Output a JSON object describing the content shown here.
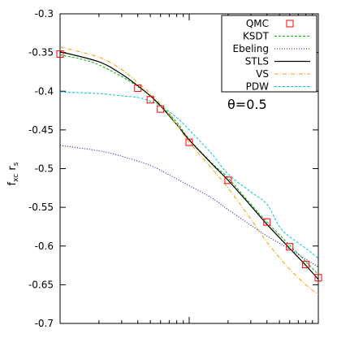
{
  "chart_data": {
    "type": "line",
    "ylabel_main": "f",
    "ylabel_sub": "xc",
    "ylabel_tail": " r",
    "ylabel_sub2": "s",
    "xscale": "log",
    "xlim": [
      0.1,
      10
    ],
    "ylim": [
      -0.7,
      -0.3
    ],
    "yticks": [
      -0.3,
      -0.35,
      -0.4,
      -0.45,
      -0.5,
      -0.55,
      -0.6,
      -0.65,
      -0.7
    ],
    "ytick_labels": [
      "-0.3",
      "-0.35",
      "-0.4",
      "-0.45",
      "-0.5",
      "-0.55",
      "-0.6",
      "-0.65",
      "-0.7"
    ],
    "xticks": [
      0.1,
      1,
      10
    ],
    "annotation": "θ=0.5",
    "legend_position": "top-right",
    "series": [
      {
        "name": "QMC",
        "style": "markers",
        "color": "#ff0000",
        "points": [
          [
            0.1,
            -0.352
          ],
          [
            0.4,
            -0.396
          ],
          [
            0.5,
            -0.411
          ],
          [
            0.6,
            -0.423
          ],
          [
            1.0,
            -0.466
          ],
          [
            2.0,
            -0.515
          ],
          [
            4.0,
            -0.569
          ],
          [
            6.0,
            -0.601
          ],
          [
            8.0,
            -0.624
          ],
          [
            10.0,
            -0.641
          ]
        ]
      },
      {
        "name": "KSDT",
        "style": "dashed",
        "color": "#00b000",
        "points": [
          [
            0.1,
            -0.353
          ],
          [
            0.15,
            -0.359
          ],
          [
            0.2,
            -0.366
          ],
          [
            0.3,
            -0.381
          ],
          [
            0.4,
            -0.394
          ],
          [
            0.5,
            -0.406
          ],
          [
            0.6,
            -0.418
          ],
          [
            0.8,
            -0.44
          ],
          [
            1.0,
            -0.462
          ],
          [
            1.5,
            -0.493
          ],
          [
            2.0,
            -0.512
          ],
          [
            3.0,
            -0.546
          ],
          [
            4.0,
            -0.569
          ],
          [
            6.0,
            -0.599
          ],
          [
            8.0,
            -0.62
          ],
          [
            10.0,
            -0.637
          ]
        ]
      },
      {
        "name": "Ebeling",
        "style": "dotted",
        "color": "#0000d0",
        "points": [
          [
            0.1,
            -0.47
          ],
          [
            0.2,
            -0.477
          ],
          [
            0.3,
            -0.484
          ],
          [
            0.5,
            -0.496
          ],
          [
            0.7,
            -0.508
          ],
          [
            1.0,
            -0.522
          ],
          [
            1.5,
            -0.538
          ],
          [
            2.0,
            -0.553
          ],
          [
            3.0,
            -0.573
          ],
          [
            4.0,
            -0.587
          ],
          [
            6.0,
            -0.604
          ],
          [
            8.0,
            -0.617
          ],
          [
            10.0,
            -0.627
          ]
        ]
      },
      {
        "name": "STLS",
        "style": "solid",
        "color": "#000000",
        "points": [
          [
            0.1,
            -0.349
          ],
          [
            0.2,
            -0.362
          ],
          [
            0.3,
            -0.378
          ],
          [
            0.4,
            -0.393
          ],
          [
            0.5,
            -0.406
          ],
          [
            0.6,
            -0.419
          ],
          [
            0.8,
            -0.443
          ],
          [
            1.0,
            -0.463
          ],
          [
            1.5,
            -0.494
          ],
          [
            2.0,
            -0.515
          ],
          [
            3.0,
            -0.548
          ],
          [
            4.0,
            -0.572
          ],
          [
            6.0,
            -0.603
          ],
          [
            8.0,
            -0.625
          ],
          [
            10.0,
            -0.643
          ]
        ]
      },
      {
        "name": "VS",
        "style": "dash-dot",
        "color": "#f0a000",
        "points": [
          [
            0.1,
            -0.343
          ],
          [
            0.2,
            -0.356
          ],
          [
            0.3,
            -0.372
          ],
          [
            0.4,
            -0.389
          ],
          [
            0.5,
            -0.403
          ],
          [
            0.6,
            -0.417
          ],
          [
            0.8,
            -0.443
          ],
          [
            1.0,
            -0.466
          ],
          [
            1.5,
            -0.5
          ],
          [
            2.0,
            -0.525
          ],
          [
            3.0,
            -0.565
          ],
          [
            4.0,
            -0.595
          ],
          [
            6.0,
            -0.63
          ],
          [
            8.0,
            -0.65
          ],
          [
            10.0,
            -0.663
          ]
        ]
      },
      {
        "name": "PDW",
        "style": "dashed",
        "color": "#00c8d0",
        "points": [
          [
            0.1,
            -0.401
          ],
          [
            0.2,
            -0.403
          ],
          [
            0.3,
            -0.406
          ],
          [
            0.4,
            -0.408
          ],
          [
            0.5,
            -0.413
          ],
          [
            0.6,
            -0.419
          ],
          [
            0.8,
            -0.434
          ],
          [
            1.0,
            -0.45
          ],
          [
            1.5,
            -0.481
          ],
          [
            2.0,
            -0.507
          ],
          [
            3.0,
            -0.53
          ],
          [
            4.0,
            -0.546
          ],
          [
            5.0,
            -0.575
          ],
          [
            6.0,
            -0.588
          ],
          [
            8.0,
            -0.603
          ],
          [
            10.0,
            -0.616
          ]
        ]
      }
    ]
  }
}
